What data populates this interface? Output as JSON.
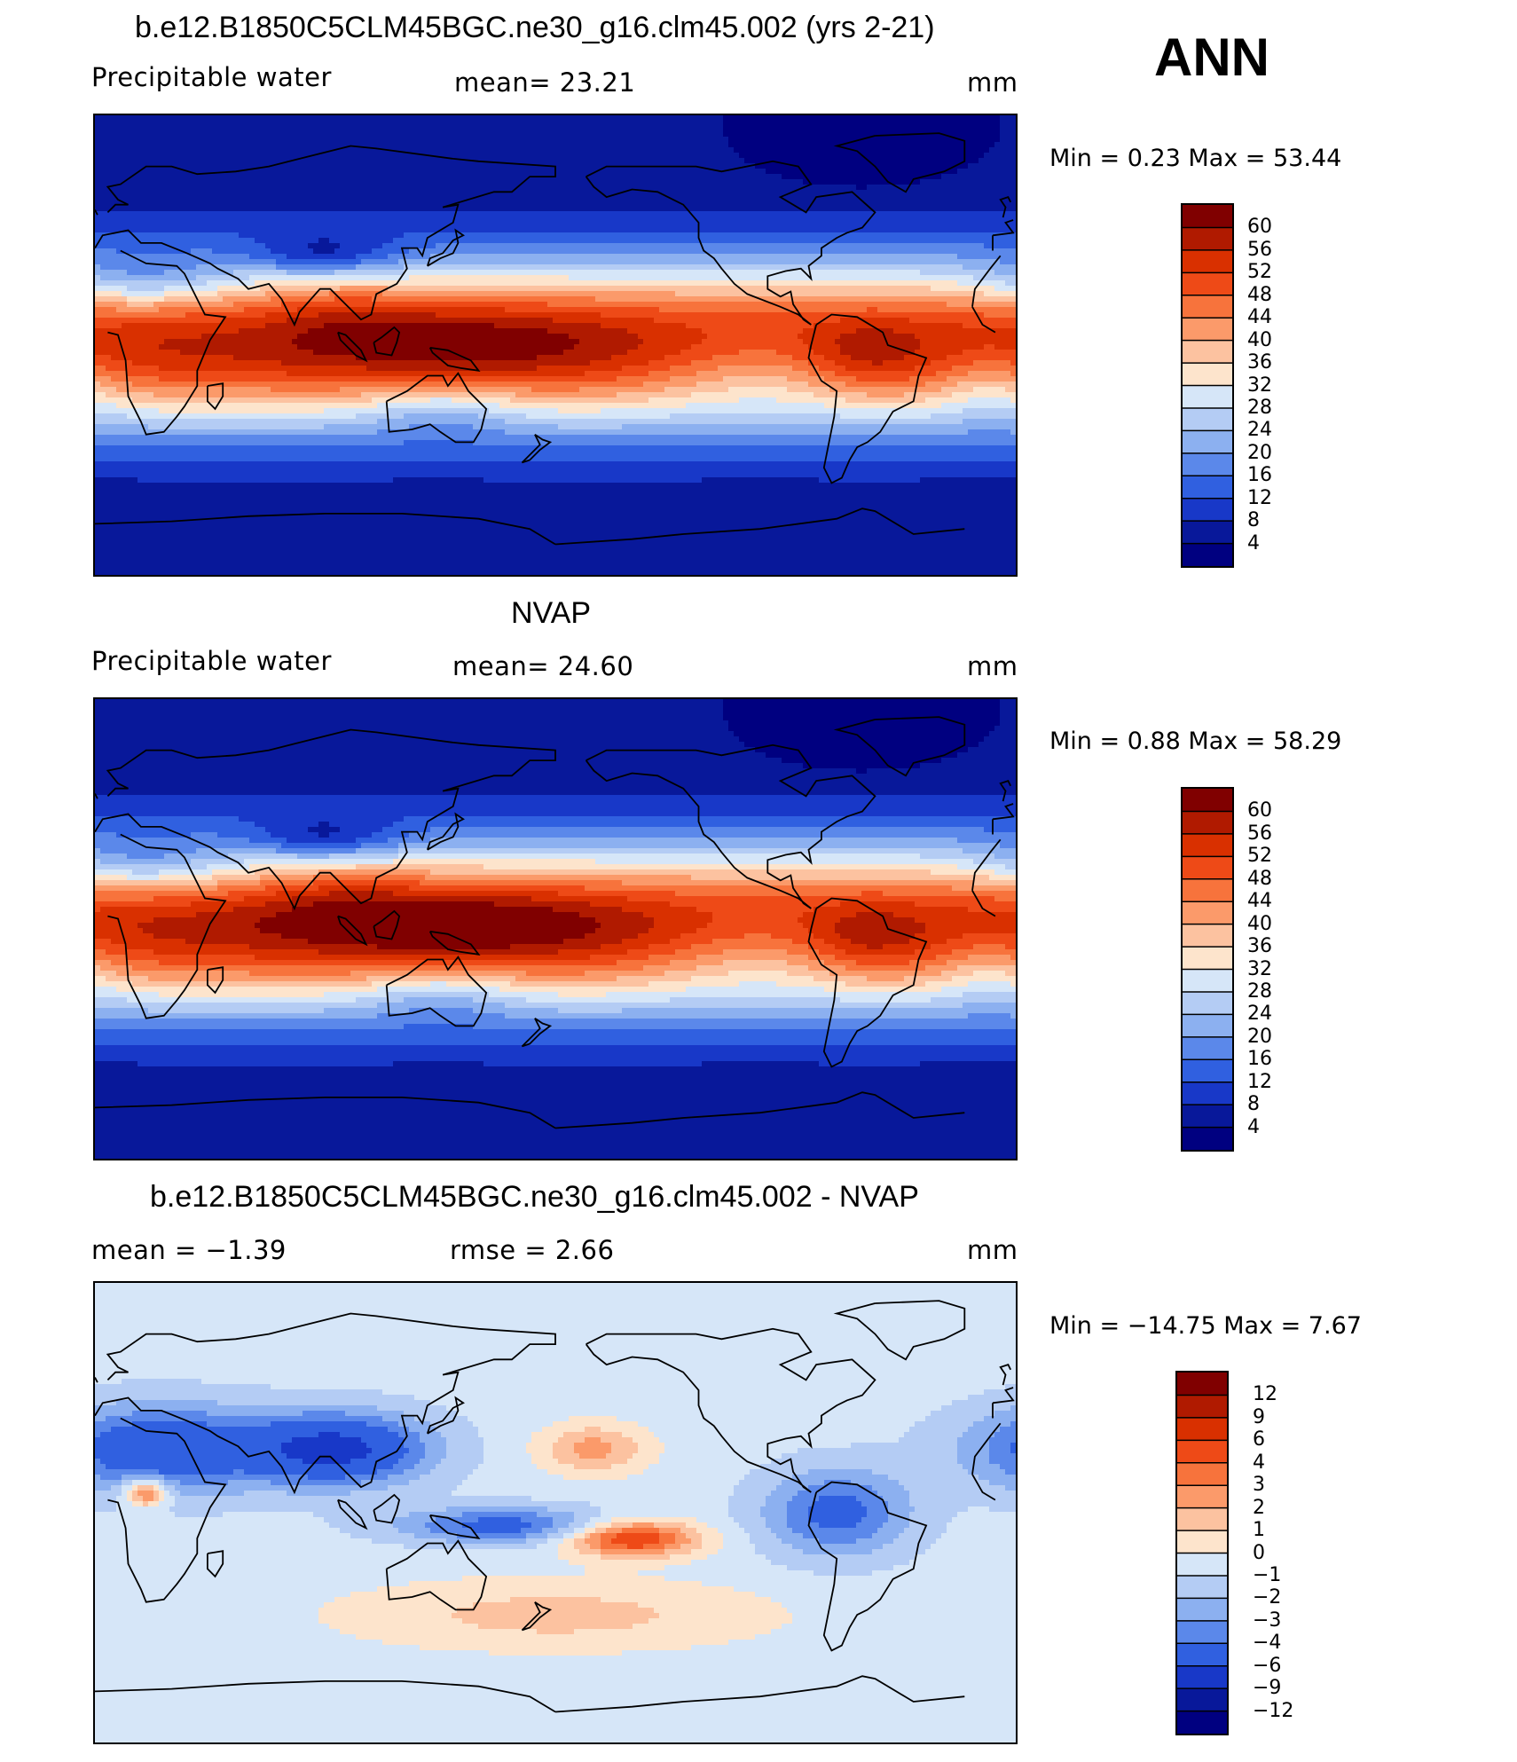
{
  "season": "ANN",
  "panels": [
    {
      "id": "model",
      "title": "b.e12.B1850C5CLM45BGC.ne30_g16.clm45.002 (yrs 2-21)",
      "left_label": "Precipitable  water",
      "center_label": "mean=   23.21",
      "units": "mm",
      "minmax": "Min  =    0.23  Max  =   53.44",
      "levels": [
        "60",
        "56",
        "52",
        "48",
        "44",
        "40",
        "36",
        "32",
        "28",
        "24",
        "20",
        "16",
        "12",
        "8",
        "4"
      ]
    },
    {
      "id": "obs",
      "title": "NVAP",
      "left_label": "Precipitable  water",
      "center_label": "mean=   24.60",
      "units": "mm",
      "minmax": "Min  =    0.88  Max  =   58.29",
      "levels": [
        "60",
        "56",
        "52",
        "48",
        "44",
        "40",
        "36",
        "32",
        "28",
        "24",
        "20",
        "16",
        "12",
        "8",
        "4"
      ]
    },
    {
      "id": "diff",
      "title": "b.e12.B1850C5CLM45BGC.ne30_g16.clm45.002 - NVAP",
      "left_label": "mean  =   −1.39",
      "center_label": "rmse  =    2.66",
      "units": "mm",
      "minmax": "Min  = −14.75  Max  =    7.67",
      "levels": [
        "12",
        "9",
        "6",
        "4",
        "3",
        "2",
        "1",
        "0",
        "−1",
        "−2",
        "−3",
        "−4",
        "−6",
        "−9",
        "−12"
      ]
    }
  ],
  "chart_data": [
    {
      "type": "heatmap",
      "title": "b.e12.B1850C5CLM45BGC.ne30_g16.clm45.002 (yrs 2-21)",
      "variable": "Precipitable water",
      "units": "mm",
      "mean": 23.21,
      "min": 0.23,
      "max": 53.44,
      "contour_levels": [
        4,
        8,
        12,
        16,
        20,
        24,
        28,
        32,
        36,
        40,
        44,
        48,
        52,
        56,
        60
      ],
      "season": "ANN"
    },
    {
      "type": "heatmap",
      "title": "NVAP",
      "variable": "Precipitable water",
      "units": "mm",
      "mean": 24.6,
      "min": 0.88,
      "max": 58.29,
      "contour_levels": [
        4,
        8,
        12,
        16,
        20,
        24,
        28,
        32,
        36,
        40,
        44,
        48,
        52,
        56,
        60
      ],
      "season": "ANN"
    },
    {
      "type": "heatmap",
      "title": "b.e12.B1850C5CLM45BGC.ne30_g16.clm45.002 - NVAP",
      "units": "mm",
      "mean": -1.39,
      "rmse": 2.66,
      "min": -14.75,
      "max": 7.67,
      "contour_levels": [
        -12,
        -9,
        -6,
        -4,
        -3,
        -2,
        -1,
        0,
        1,
        2,
        3,
        4,
        6,
        9,
        12
      ],
      "season": "ANN"
    }
  ],
  "colors": {
    "palette": [
      "#800000",
      "#b01a00",
      "#d93000",
      "#ee4a17",
      "#f7733c",
      "#fb9a6a",
      "#fcc2a0",
      "#fde4cc",
      "#d6e6f8",
      "#b4ccf4",
      "#8cb0f0",
      "#5b88ea",
      "#3060e0",
      "#1838c8",
      "#08189a",
      "#000080"
    ]
  }
}
